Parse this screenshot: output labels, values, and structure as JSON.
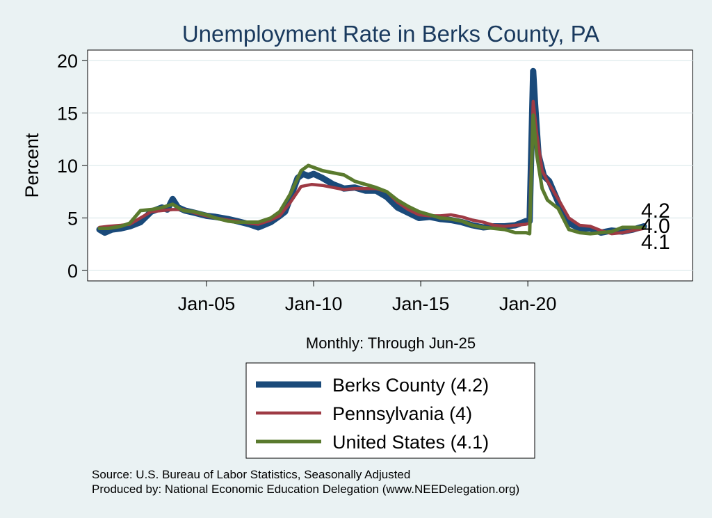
{
  "chart_data": {
    "type": "line",
    "title": "Unemployment Rate in Berks  County, PA",
    "ylabel": "Percent",
    "xlabel": "Monthly: Through Jun-25",
    "x_range": [
      "Jan-00",
      "Jun-25"
    ],
    "ylim": [
      -1,
      21
    ],
    "y_ticks": [
      0,
      5,
      10,
      15,
      20
    ],
    "x_ticks": [
      {
        "label": "Jan-05",
        "date": "2005-01"
      },
      {
        "label": "Jan-10",
        "date": "2010-01"
      },
      {
        "label": "Jan-15",
        "date": "2015-01"
      },
      {
        "label": "Jan-20",
        "date": "2020-01"
      }
    ],
    "grid": "horizontal",
    "legend_placement": "bottom",
    "series": [
      {
        "name": "Berks  County (4.2)",
        "color": "#1a4a7a",
        "end_label": "4.2",
        "points": [
          [
            "2000-01",
            3.9
          ],
          [
            "2000-04",
            3.6
          ],
          [
            "2000-08",
            3.9
          ],
          [
            "2001-01",
            4.0
          ],
          [
            "2001-06",
            4.2
          ],
          [
            "2001-12",
            4.6
          ],
          [
            "2002-06",
            5.6
          ],
          [
            "2002-12",
            6.0
          ],
          [
            "2003-03",
            5.8
          ],
          [
            "2003-06",
            6.8
          ],
          [
            "2003-09",
            6.0
          ],
          [
            "2004-01",
            5.7
          ],
          [
            "2004-06",
            5.5
          ],
          [
            "2005-01",
            5.2
          ],
          [
            "2005-06",
            5.1
          ],
          [
            "2006-01",
            4.9
          ],
          [
            "2006-06",
            4.7
          ],
          [
            "2007-01",
            4.4
          ],
          [
            "2007-06",
            4.1
          ],
          [
            "2008-01",
            4.6
          ],
          [
            "2008-06",
            5.2
          ],
          [
            "2008-09",
            5.6
          ],
          [
            "2009-01",
            7.4
          ],
          [
            "2009-04",
            8.8
          ],
          [
            "2009-07",
            9.2
          ],
          [
            "2009-10",
            9.0
          ],
          [
            "2010-01",
            9.2
          ],
          [
            "2010-06",
            8.8
          ],
          [
            "2010-12",
            8.2
          ],
          [
            "2011-06",
            7.8
          ],
          [
            "2011-12",
            7.9
          ],
          [
            "2012-06",
            7.6
          ],
          [
            "2012-12",
            7.6
          ],
          [
            "2013-06",
            7.0
          ],
          [
            "2013-12",
            6.0
          ],
          [
            "2014-06",
            5.5
          ],
          [
            "2014-12",
            5.0
          ],
          [
            "2015-06",
            5.1
          ],
          [
            "2015-12",
            4.9
          ],
          [
            "2016-06",
            4.8
          ],
          [
            "2016-12",
            4.6
          ],
          [
            "2017-06",
            4.3
          ],
          [
            "2017-12",
            4.1
          ],
          [
            "2018-06",
            4.2
          ],
          [
            "2018-12",
            4.2
          ],
          [
            "2019-06",
            4.3
          ],
          [
            "2019-12",
            4.7
          ],
          [
            "2020-02",
            4.7
          ],
          [
            "2020-04",
            19.0
          ],
          [
            "2020-05",
            16.0
          ],
          [
            "2020-07",
            11.0
          ],
          [
            "2020-10",
            9.0
          ],
          [
            "2021-01",
            8.5
          ],
          [
            "2021-06",
            6.5
          ],
          [
            "2021-12",
            4.5
          ],
          [
            "2022-06",
            4.0
          ],
          [
            "2022-12",
            4.0
          ],
          [
            "2023-06",
            3.6
          ],
          [
            "2023-12",
            3.8
          ],
          [
            "2024-06",
            3.7
          ],
          [
            "2024-12",
            3.9
          ],
          [
            "2025-06",
            4.2
          ]
        ]
      },
      {
        "name": "Pennsylvania (4)",
        "color": "#9e3a44",
        "end_label": "4.0",
        "points": [
          [
            "2000-01",
            4.1
          ],
          [
            "2000-06",
            4.2
          ],
          [
            "2001-01",
            4.3
          ],
          [
            "2001-06",
            4.4
          ],
          [
            "2001-12",
            5.0
          ],
          [
            "2002-06",
            5.6
          ],
          [
            "2002-12",
            5.7
          ],
          [
            "2003-06",
            5.8
          ],
          [
            "2003-12",
            5.8
          ],
          [
            "2004-06",
            5.5
          ],
          [
            "2005-01",
            5.2
          ],
          [
            "2005-06",
            5.0
          ],
          [
            "2006-01",
            4.8
          ],
          [
            "2006-06",
            4.7
          ],
          [
            "2007-01",
            4.5
          ],
          [
            "2007-06",
            4.4
          ],
          [
            "2008-01",
            4.8
          ],
          [
            "2008-06",
            5.2
          ],
          [
            "2008-12",
            6.5
          ],
          [
            "2009-06",
            8.0
          ],
          [
            "2009-12",
            8.2
          ],
          [
            "2010-06",
            8.1
          ],
          [
            "2010-12",
            7.9
          ],
          [
            "2011-06",
            7.7
          ],
          [
            "2011-12",
            7.8
          ],
          [
            "2012-06",
            7.8
          ],
          [
            "2012-12",
            7.8
          ],
          [
            "2013-06",
            7.5
          ],
          [
            "2013-12",
            6.5
          ],
          [
            "2014-06",
            5.8
          ],
          [
            "2014-12",
            5.3
          ],
          [
            "2015-06",
            5.2
          ],
          [
            "2015-12",
            5.2
          ],
          [
            "2016-06",
            5.3
          ],
          [
            "2016-12",
            5.1
          ],
          [
            "2017-06",
            4.8
          ],
          [
            "2017-12",
            4.6
          ],
          [
            "2018-06",
            4.3
          ],
          [
            "2018-12",
            4.2
          ],
          [
            "2019-06",
            4.3
          ],
          [
            "2019-12",
            4.4
          ],
          [
            "2020-02",
            4.5
          ],
          [
            "2020-04",
            16.1
          ],
          [
            "2020-06",
            13.0
          ],
          [
            "2020-09",
            9.5
          ],
          [
            "2020-12",
            8.5
          ],
          [
            "2021-06",
            6.8
          ],
          [
            "2021-12",
            5.0
          ],
          [
            "2022-06",
            4.3
          ],
          [
            "2022-12",
            4.2
          ],
          [
            "2023-06",
            3.8
          ],
          [
            "2023-12",
            3.5
          ],
          [
            "2024-06",
            3.6
          ],
          [
            "2024-12",
            3.8
          ],
          [
            "2025-06",
            4.0
          ]
        ]
      },
      {
        "name": "United States (4.1)",
        "color": "#5a7a2e",
        "end_label": "4.1",
        "points": [
          [
            "2000-01",
            4.0
          ],
          [
            "2000-06",
            4.0
          ],
          [
            "2001-01",
            4.2
          ],
          [
            "2001-06",
            4.5
          ],
          [
            "2001-12",
            5.7
          ],
          [
            "2002-06",
            5.8
          ],
          [
            "2002-12",
            6.0
          ],
          [
            "2003-06",
            6.3
          ],
          [
            "2003-12",
            5.7
          ],
          [
            "2004-06",
            5.6
          ],
          [
            "2005-01",
            5.3
          ],
          [
            "2005-06",
            5.0
          ],
          [
            "2006-01",
            4.7
          ],
          [
            "2006-06",
            4.6
          ],
          [
            "2007-01",
            4.6
          ],
          [
            "2007-06",
            4.6
          ],
          [
            "2008-01",
            5.0
          ],
          [
            "2008-06",
            5.6
          ],
          [
            "2008-12",
            7.3
          ],
          [
            "2009-06",
            9.5
          ],
          [
            "2009-10",
            10.0
          ],
          [
            "2010-06",
            9.5
          ],
          [
            "2010-12",
            9.3
          ],
          [
            "2011-06",
            9.1
          ],
          [
            "2011-12",
            8.5
          ],
          [
            "2012-06",
            8.2
          ],
          [
            "2012-12",
            7.9
          ],
          [
            "2013-06",
            7.5
          ],
          [
            "2013-12",
            6.7
          ],
          [
            "2014-06",
            6.1
          ],
          [
            "2014-12",
            5.6
          ],
          [
            "2015-06",
            5.3
          ],
          [
            "2015-12",
            5.0
          ],
          [
            "2016-06",
            4.9
          ],
          [
            "2016-12",
            4.7
          ],
          [
            "2017-06",
            4.3
          ],
          [
            "2017-12",
            4.1
          ],
          [
            "2018-06",
            4.0
          ],
          [
            "2018-12",
            3.9
          ],
          [
            "2019-06",
            3.6
          ],
          [
            "2019-12",
            3.6
          ],
          [
            "2020-02",
            3.5
          ],
          [
            "2020-04",
            14.8
          ],
          [
            "2020-06",
            11.0
          ],
          [
            "2020-09",
            7.8
          ],
          [
            "2020-12",
            6.7
          ],
          [
            "2021-06",
            5.9
          ],
          [
            "2021-12",
            3.9
          ],
          [
            "2022-06",
            3.6
          ],
          [
            "2022-12",
            3.5
          ],
          [
            "2023-06",
            3.6
          ],
          [
            "2023-12",
            3.7
          ],
          [
            "2024-06",
            4.1
          ],
          [
            "2024-12",
            4.1
          ],
          [
            "2025-06",
            4.1
          ]
        ]
      }
    ],
    "source_lines": [
      "Source: U.S. Bureau of Labor Statistics, Seasonally Adjusted",
      "Produced by: National Economic Education Delegation (www.NEEDelegation.org)"
    ]
  }
}
